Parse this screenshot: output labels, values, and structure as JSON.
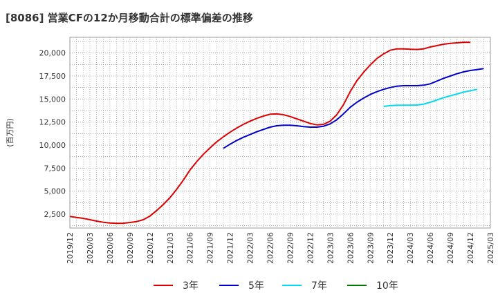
{
  "chart_data": {
    "type": "line",
    "title": "[8086]  営業CFの12か月移動合計の標準偏差の推移",
    "ylabel": "(百万円)",
    "xlabel": "",
    "ylim": [
      1000,
      21700
    ],
    "yticks": [
      2500,
      5000,
      7500,
      10000,
      12500,
      15000,
      17500,
      20000
    ],
    "ytick_labels": [
      "2,500",
      "5,000",
      "7,500",
      "10,000",
      "12,500",
      "15,000",
      "17,500",
      "20,000"
    ],
    "xtick_labels": [
      "2019/12",
      "2020/03",
      "2020/06",
      "2020/09",
      "2020/12",
      "2021/03",
      "2021/06",
      "2021/09",
      "2021/12",
      "2022/03",
      "2022/06",
      "2022/09",
      "2022/12",
      "2023/03",
      "2023/06",
      "2023/09",
      "2023/12",
      "2024/03",
      "2024/06",
      "2024/09",
      "2024/12",
      "2025/03"
    ],
    "grid": true,
    "legend_position": "bottom",
    "series": [
      {
        "name": "3年",
        "color": "#dd0000",
        "start_index": 0,
        "values": [
          2250,
          2150,
          2050,
          1900,
          1750,
          1620,
          1550,
          1500,
          1520,
          1600,
          1700,
          1900,
          2300,
          2900,
          3550,
          4300,
          5200,
          6200,
          7300,
          8200,
          9000,
          9700,
          10350,
          10900,
          11400,
          11850,
          12250,
          12600,
          12900,
          13150,
          13350,
          13380,
          13300,
          13100,
          12850,
          12600,
          12350,
          12200,
          12250,
          12600,
          13300,
          14400,
          15800,
          17000,
          17900,
          18700,
          19400,
          19900,
          20300,
          20450,
          20450,
          20400,
          20380,
          20450,
          20650,
          20800,
          20950,
          21050,
          21100,
          21150,
          21150
        ]
      },
      {
        "name": "5年",
        "color": "#0000cc",
        "start_index": 23,
        "values": [
          9650,
          10100,
          10500,
          10850,
          11150,
          11450,
          11700,
          11950,
          12100,
          12150,
          12150,
          12100,
          12000,
          11950,
          11950,
          12050,
          12300,
          12750,
          13400,
          14100,
          14650,
          15100,
          15500,
          15800,
          16050,
          16250,
          16400,
          16450,
          16450,
          16450,
          16500,
          16650,
          16950,
          17250,
          17500,
          17750,
          17950,
          18100,
          18200,
          18300
        ]
      },
      {
        "name": "7年",
        "color": "#00d8f0",
        "start_index": 47,
        "values": [
          14200,
          14280,
          14320,
          14330,
          14330,
          14350,
          14450,
          14650,
          14900,
          15150,
          15350,
          15550,
          15750,
          15900,
          16050
        ]
      },
      {
        "name": "10年",
        "color": "#007700",
        "start_index": 0,
        "values": []
      }
    ]
  }
}
